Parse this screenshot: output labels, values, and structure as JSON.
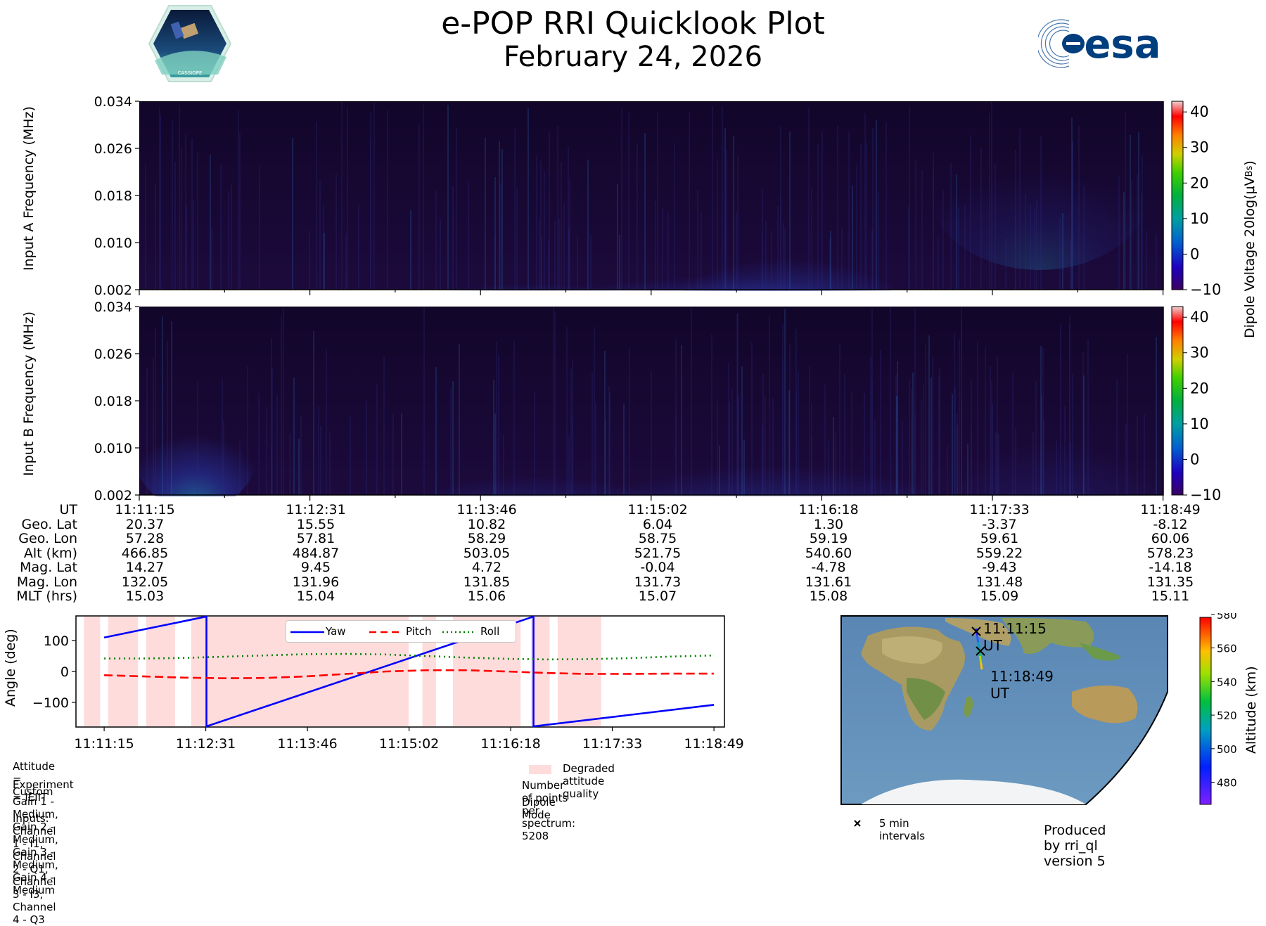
{
  "header": {
    "title": "e-POP RRI Quicklook Plot",
    "date": "February 24, 2026",
    "logo_left": "CASSIOPE",
    "logo_right": "esa"
  },
  "colors": {
    "spectrogram_bg": "#190a33",
    "accent_green": "#33cc33",
    "degraded": "#ffdcdc",
    "yaw": "#0000ff",
    "pitch": "#ff0000",
    "roll": "#008000"
  },
  "spectrogram": {
    "panel_a_ylabel": "Input A Frequency (MHz)",
    "panel_b_ylabel": "Input B Frequency (MHz)",
    "yticks": [
      "0.002",
      "0.010",
      "0.018",
      "0.026",
      "0.034"
    ],
    "colorbar_label": "Dipole Voltage 20log(μV",
    "colorbar_label_sub": "Bs",
    "colorbar_label_end": ")",
    "colorbar_ticks": [
      "−10",
      "0",
      "10",
      "20",
      "30",
      "40"
    ]
  },
  "geo_table": {
    "labels": [
      "UT",
      "Geo. Lat",
      "Geo. Lon",
      "Alt (km)",
      "Mag. Lat",
      "Mag. Lon",
      "MLT (hrs)"
    ],
    "columns": [
      [
        "11:11:15",
        "20.37",
        "57.28",
        "466.85",
        "14.27",
        "132.05",
        "15.03"
      ],
      [
        "11:12:31",
        "15.55",
        "57.81",
        "484.87",
        "9.45",
        "131.96",
        "15.04"
      ],
      [
        "11:13:46",
        "10.82",
        "58.29",
        "503.05",
        "4.72",
        "131.85",
        "15.06"
      ],
      [
        "11:15:02",
        "6.04",
        "58.75",
        "521.75",
        "-0.04",
        "131.73",
        "15.07"
      ],
      [
        "11:16:18",
        "1.30",
        "59.19",
        "540.60",
        "-4.78",
        "131.61",
        "15.08"
      ],
      [
        "11:17:33",
        "-3.37",
        "59.61",
        "559.22",
        "-9.43",
        "131.48",
        "15.09"
      ],
      [
        "11:18:49",
        "-8.12",
        "60.06",
        "578.23",
        "-14.18",
        "131.35",
        "15.11"
      ]
    ]
  },
  "chart_data": {
    "type": "line",
    "title": "",
    "ylabel": "Angle (deg)",
    "xlabel": "",
    "x_ticks": [
      "11:11:15",
      "11:12:31",
      "11:13:46",
      "11:15:02",
      "11:16:18",
      "11:17:33",
      "11:18:49"
    ],
    "y_ticks": [
      "100",
      "0",
      "−100"
    ],
    "ylim": [
      -180,
      180
    ],
    "legend": [
      "Yaw",
      "Pitch",
      "Roll"
    ],
    "x_minutes": [
      0,
      1.27,
      1.27,
      5.33,
      5.33,
      7.57
    ],
    "series": [
      {
        "name": "Yaw",
        "style": "solid",
        "points": [
          [
            0,
            110
          ],
          [
            1.27,
            178
          ],
          [
            1.27,
            -178
          ],
          [
            5.33,
            178
          ],
          [
            5.33,
            -178
          ],
          [
            7.57,
            -108
          ]
        ]
      },
      {
        "name": "Pitch",
        "style": "dashed",
        "points": [
          [
            0,
            -12
          ],
          [
            0.5,
            -16
          ],
          [
            1.0,
            -20
          ],
          [
            1.5,
            -22
          ],
          [
            2.0,
            -21
          ],
          [
            2.5,
            -16
          ],
          [
            3.0,
            -8
          ],
          [
            3.5,
            0
          ],
          [
            4.0,
            4
          ],
          [
            4.5,
            4
          ],
          [
            5.0,
            0
          ],
          [
            5.5,
            -5
          ],
          [
            6.0,
            -8
          ],
          [
            6.5,
            -8
          ],
          [
            7.0,
            -7
          ],
          [
            7.57,
            -7
          ]
        ]
      },
      {
        "name": "Roll",
        "style": "dotted",
        "points": [
          [
            0,
            42
          ],
          [
            0.5,
            42
          ],
          [
            1.0,
            44
          ],
          [
            1.5,
            48
          ],
          [
            2.0,
            52
          ],
          [
            2.5,
            56
          ],
          [
            3.0,
            57
          ],
          [
            3.5,
            55
          ],
          [
            4.0,
            50
          ],
          [
            4.5,
            45
          ],
          [
            5.0,
            41
          ],
          [
            5.5,
            39
          ],
          [
            6.0,
            40
          ],
          [
            6.5,
            43
          ],
          [
            7.0,
            48
          ],
          [
            7.57,
            52
          ]
        ]
      }
    ],
    "degraded_intervals_minutes": [
      [
        -0.25,
        -0.05
      ],
      [
        0.05,
        0.42
      ],
      [
        0.52,
        0.88
      ],
      [
        1.08,
        3.78
      ],
      [
        3.95,
        4.12
      ],
      [
        4.33,
        5.17
      ],
      [
        5.3,
        5.53
      ],
      [
        5.63,
        6.17
      ]
    ],
    "degraded_label": "Degraded attitude quality"
  },
  "map": {
    "start_label": "11:11:15 UT",
    "end_label": "11:18:49 UT",
    "interval_label": "5 min intervals",
    "altitude_label": "Altitude (km)",
    "altitude_ticks": [
      "580",
      "560",
      "540",
      "520",
      "500",
      "480"
    ],
    "altitude_range_km": [
      466.85,
      578.23
    ]
  },
  "info": {
    "attitude": "Attitude = Custom",
    "experiment": "Experiment = IEIIT",
    "gain": "Gain 1 - Medium, Gain 2 - Medium, Gain 3 - Medium, Gain 4 - Medium",
    "inputs": "Inputs: Channel 1 - I1, Channel 2 - Q1, Channel 3 - I3, Channel 4 - Q3",
    "points": "Number of points per spectrum: 5208",
    "mode": "Dipole Mode",
    "produced": "Produced by rri_ql version 5"
  }
}
